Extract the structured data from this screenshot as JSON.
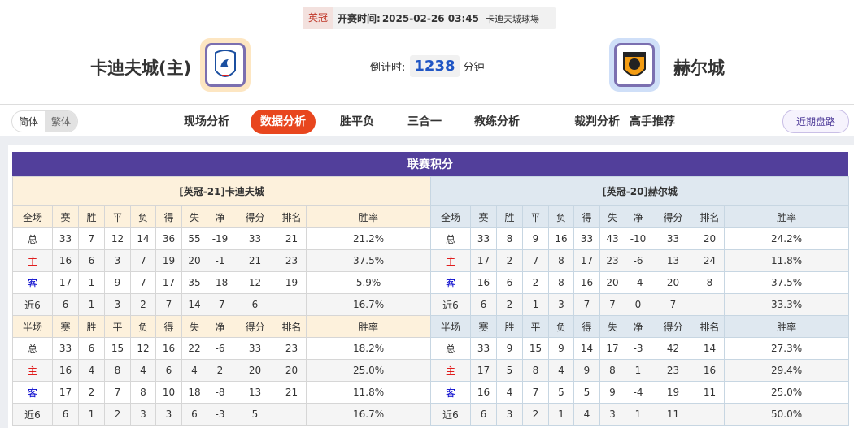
{
  "match": {
    "league": "英冠",
    "time_label": "开赛时间:",
    "time": "2025-02-26 03:45",
    "venue": "卡迪夫城球場"
  },
  "home": {
    "name": "卡迪夫城(主)",
    "logo": "cardiff-city-crest"
  },
  "away": {
    "name": "赫尔城",
    "logo": "hull-city-crest"
  },
  "countdown": {
    "label": "倒计时:",
    "value": "1238",
    "unit": "分钟"
  },
  "lang": {
    "simplified": "简体",
    "traditional": "繁体"
  },
  "nav": [
    {
      "label": "现场分析"
    },
    {
      "label": "数据分析",
      "active": true
    },
    {
      "label": "胜平负"
    },
    {
      "label": "三合一"
    },
    {
      "label": "教练分析"
    },
    {
      "label": "裁判分析"
    },
    {
      "label": "高手推荐"
    }
  ],
  "recent_button": "近期盘路",
  "section_title": "联赛积分",
  "columns": [
    "赛",
    "胜",
    "平",
    "负",
    "得",
    "失",
    "净",
    "得分",
    "排名",
    "胜率"
  ],
  "tables": [
    {
      "caption": "[英冠-21]卡迪夫城",
      "full": {
        "label": "全场",
        "rows": [
          [
            "总",
            "33",
            "7",
            "12",
            "14",
            "36",
            "55",
            "-19",
            "33",
            "21",
            "21.2%"
          ],
          [
            "主",
            "16",
            "6",
            "3",
            "7",
            "19",
            "20",
            "-1",
            "21",
            "23",
            "37.5%"
          ],
          [
            "客",
            "17",
            "1",
            "9",
            "7",
            "17",
            "35",
            "-18",
            "12",
            "19",
            "5.9%"
          ],
          [
            "近6",
            "6",
            "1",
            "3",
            "2",
            "7",
            "14",
            "-7",
            "6",
            "",
            "16.7%"
          ]
        ]
      },
      "half": {
        "label": "半场",
        "rows": [
          [
            "总",
            "33",
            "6",
            "15",
            "12",
            "16",
            "22",
            "-6",
            "33",
            "23",
            "18.2%"
          ],
          [
            "主",
            "16",
            "4",
            "8",
            "4",
            "6",
            "4",
            "2",
            "20",
            "20",
            "25.0%"
          ],
          [
            "客",
            "17",
            "2",
            "7",
            "8",
            "10",
            "18",
            "-8",
            "13",
            "21",
            "11.8%"
          ],
          [
            "近6",
            "6",
            "1",
            "2",
            "3",
            "3",
            "6",
            "-3",
            "5",
            "",
            "16.7%"
          ]
        ]
      }
    },
    {
      "caption": "[英冠-20]赫尔城",
      "full": {
        "label": "全场",
        "rows": [
          [
            "总",
            "33",
            "8",
            "9",
            "16",
            "33",
            "43",
            "-10",
            "33",
            "20",
            "24.2%"
          ],
          [
            "主",
            "17",
            "2",
            "7",
            "8",
            "17",
            "23",
            "-6",
            "13",
            "24",
            "11.8%"
          ],
          [
            "客",
            "16",
            "6",
            "2",
            "8",
            "16",
            "20",
            "-4",
            "20",
            "8",
            "37.5%"
          ],
          [
            "近6",
            "6",
            "2",
            "1",
            "3",
            "7",
            "7",
            "0",
            "7",
            "",
            "33.3%"
          ]
        ]
      },
      "half": {
        "label": "半场",
        "rows": [
          [
            "总",
            "33",
            "9",
            "15",
            "9",
            "14",
            "17",
            "-3",
            "42",
            "14",
            "27.3%"
          ],
          [
            "主",
            "17",
            "5",
            "8",
            "4",
            "9",
            "8",
            "1",
            "23",
            "16",
            "29.4%"
          ],
          [
            "客",
            "16",
            "4",
            "7",
            "5",
            "5",
            "9",
            "-4",
            "19",
            "11",
            "25.0%"
          ],
          [
            "近6",
            "6",
            "3",
            "2",
            "1",
            "4",
            "3",
            "1",
            "11",
            "",
            "50.0%"
          ]
        ]
      }
    }
  ]
}
